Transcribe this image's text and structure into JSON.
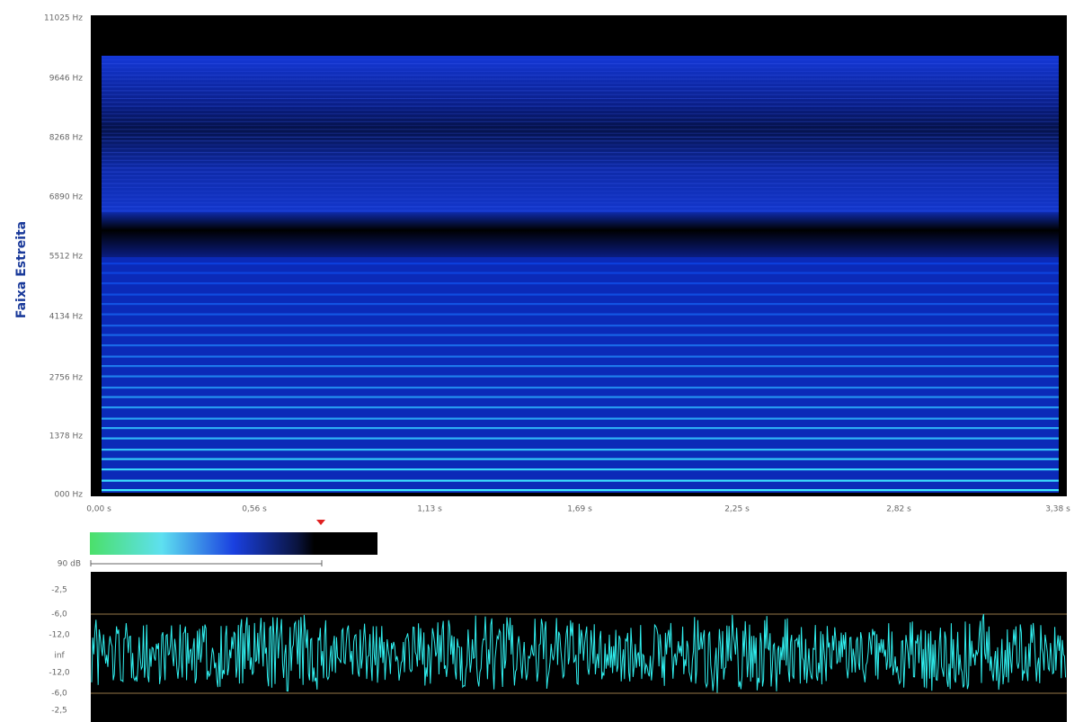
{
  "spectrogram": {
    "y_axis_label": "Faixa Estreita",
    "y_ticks": [
      "11025 Hz",
      "9646 Hz",
      "8268 Hz",
      "6890 Hz",
      "5512 Hz",
      "4134 Hz",
      "2756 Hz",
      "1378 Hz",
      "000 Hz"
    ],
    "x_ticks": [
      "0,00 s",
      "0,56 s",
      "1,13 s",
      "1,69 s",
      "2,25 s",
      "2,82 s",
      "3,38 s"
    ]
  },
  "colorbar": {
    "label": "90 dB"
  },
  "waveform": {
    "y_ticks": [
      "-2,5",
      "-6,0",
      "-12,0",
      "inf",
      "-12,0",
      "-6,0",
      "-2,5"
    ]
  }
}
